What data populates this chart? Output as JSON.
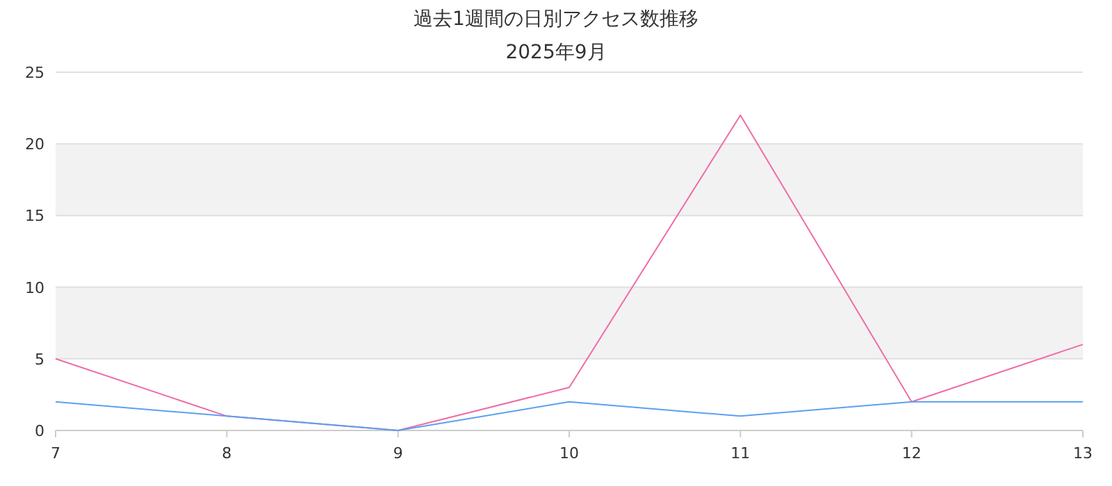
{
  "chart_data": {
    "type": "line",
    "title": "過去1週間の日別アクセス数推移",
    "subtitle": "2025年9月",
    "categories": [
      "7",
      "8",
      "9",
      "10",
      "11",
      "12",
      "13"
    ],
    "series": [
      {
        "color": "#f06ba8",
        "values": [
          5,
          1,
          0,
          3,
          22,
          2,
          6
        ]
      },
      {
        "color": "#5aa0f0",
        "values": [
          2,
          1,
          0,
          2,
          1,
          2,
          2
        ]
      }
    ],
    "ylim": [
      0,
      25
    ],
    "yticks": [
      0,
      5,
      10,
      15,
      20,
      25
    ],
    "grid": "y",
    "marker": "none",
    "line_style": "solid",
    "bands": [
      {
        "axis": "y",
        "from": 5,
        "to": 10,
        "color": "#f2f2f2"
      },
      {
        "axis": "y",
        "from": 15,
        "to": 20,
        "color": "#f2f2f2"
      }
    ]
  }
}
